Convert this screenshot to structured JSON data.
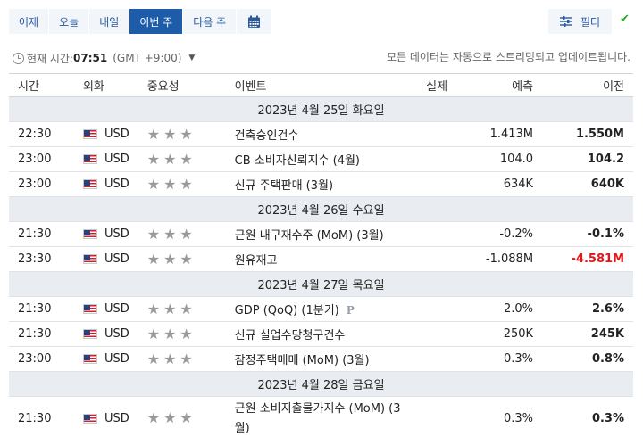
{
  "tabs": [
    {
      "label": "어제"
    },
    {
      "label": "오늘"
    },
    {
      "label": "내일"
    },
    {
      "label": "이번 주",
      "active": true
    },
    {
      "label": "다음 주"
    }
  ],
  "calendar_icon": "calendar-icon",
  "filter": {
    "label": "필터",
    "icon": "sliders-icon"
  },
  "check_icon": "check-icon",
  "current_time": {
    "label": "현재 시간:",
    "time": "07:51",
    "tz": "(GMT +9:00)"
  },
  "notice": "모든 데이터는 자동으로 스트리밍되고 업데이트됩니다.",
  "columns": {
    "time": "시간",
    "currency": "외화",
    "importance": "중요성",
    "event": "이벤트",
    "actual": "실제",
    "forecast": "예측",
    "previous": "이전"
  },
  "days": [
    {
      "date_label": "2023년 4월 25일 화요일",
      "events": [
        {
          "time": "22:30",
          "currency": "USD",
          "stars": "★★★",
          "event": "건축승인건수",
          "actual": "",
          "forecast": "1.413M",
          "previous": "1.550M"
        },
        {
          "time": "23:00",
          "currency": "USD",
          "stars": "★★★",
          "event": "CB 소비자신뢰지수 (4월)",
          "actual": "",
          "forecast": "104.0",
          "previous": "104.2"
        },
        {
          "time": "23:00",
          "currency": "USD",
          "stars": "★★★",
          "event": "신규 주택판매 (3월)",
          "actual": "",
          "forecast": "634K",
          "previous": "640K"
        }
      ]
    },
    {
      "date_label": "2023년 4월 26일 수요일",
      "events": [
        {
          "time": "21:30",
          "currency": "USD",
          "stars": "★★★",
          "event": "근원 내구재수주 (MoM) (3월)",
          "actual": "",
          "forecast": "-0.2%",
          "previous": "-0.1%"
        },
        {
          "time": "23:30",
          "currency": "USD",
          "stars": "★★★",
          "event": "원유재고",
          "actual": "",
          "forecast": "-1.088M",
          "previous": "-4.581M",
          "previous_color": "#e3161a"
        }
      ]
    },
    {
      "date_label": "2023년 4월 27일 목요일",
      "events": [
        {
          "time": "21:30",
          "currency": "USD",
          "stars": "★★★",
          "event": "GDP (QoQ) (1분기)",
          "badge": "P",
          "actual": "",
          "forecast": "2.0%",
          "previous": "2.6%"
        },
        {
          "time": "21:30",
          "currency": "USD",
          "stars": "★★★",
          "event": "신규 실업수당청구건수",
          "actual": "",
          "forecast": "250K",
          "previous": "245K"
        },
        {
          "time": "23:00",
          "currency": "USD",
          "stars": "★★★",
          "event": "잠정주택매매 (MoM) (3월)",
          "actual": "",
          "forecast": "0.3%",
          "previous": "0.8%"
        }
      ]
    },
    {
      "date_label": "2023년 4월 28일 금요일",
      "events": [
        {
          "time": "21:30",
          "currency": "USD",
          "stars": "★★★",
          "event": "근원 소비지출물가지수 (MoM) (3월)",
          "actual": "",
          "forecast": "0.3%",
          "previous": "0.3%"
        }
      ]
    }
  ]
}
